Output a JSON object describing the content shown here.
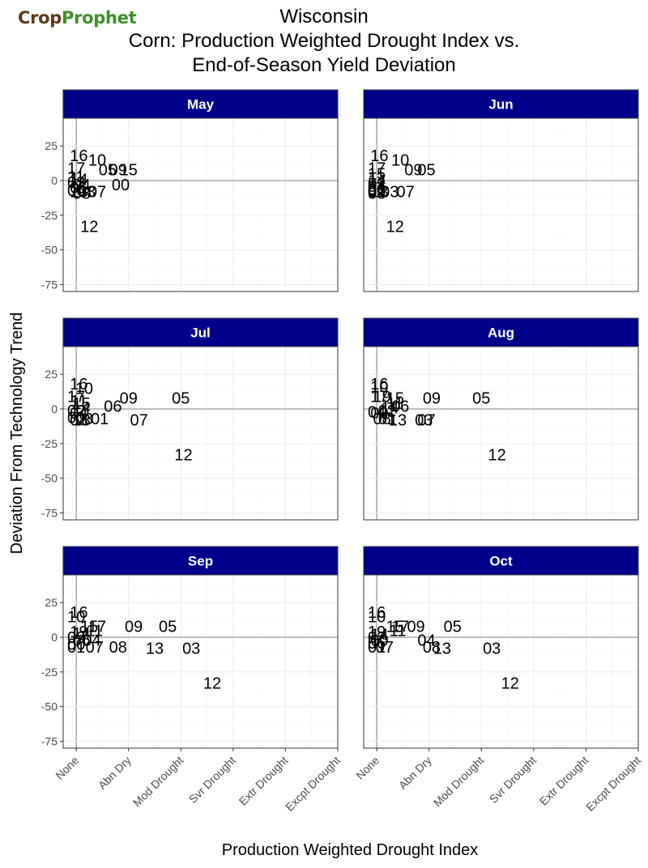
{
  "logo": {
    "part1": "Crop",
    "part2": "Prophet"
  },
  "title": {
    "line1": "Wisconsin",
    "line2": "Corn: Production Weighted Drought Index vs.",
    "line3": "End-of-Season Yield Deviation"
  },
  "colors": {
    "strip": "#00008b",
    "strip_text": "#ffffff",
    "grid": "#ebebeb",
    "zero_line": "#b0b0b0",
    "panel_border": "#333333"
  },
  "chart_data": {
    "type": "scatter",
    "xlabel": "Production Weighted Drought Index",
    "ylabel": "Deviation From Technology Trend",
    "x_ticks": [
      "None",
      "Abn Dry",
      "Mod Drought",
      "Svr Drought",
      "Extr Drought",
      "Excpt Drought"
    ],
    "x_range": [
      -0.25,
      5
    ],
    "y_ticks": [
      25,
      0,
      -25,
      -50,
      -75
    ],
    "ylim": [
      -80,
      45
    ],
    "panels": [
      {
        "name": "May",
        "points": [
          {
            "label": "16",
            "x": 0.05,
            "y": 18
          },
          {
            "label": "10",
            "x": 0.4,
            "y": 15
          },
          {
            "label": "17",
            "x": 0.0,
            "y": 9
          },
          {
            "label": "05",
            "x": 0.6,
            "y": 8
          },
          {
            "label": "09",
            "x": 0.8,
            "y": 8
          },
          {
            "label": "15",
            "x": 1.0,
            "y": 8
          },
          {
            "label": "11",
            "x": 0.0,
            "y": 3
          },
          {
            "label": "14",
            "x": 0.05,
            "y": 1
          },
          {
            "label": "02",
            "x": 0.0,
            "y": -1
          },
          {
            "label": "04",
            "x": 0.1,
            "y": -3
          },
          {
            "label": "01",
            "x": 0.05,
            "y": -5
          },
          {
            "label": "00",
            "x": 0.85,
            "y": -3
          },
          {
            "label": "06",
            "x": 0.0,
            "y": -7
          },
          {
            "label": "13",
            "x": 0.05,
            "y": -8
          },
          {
            "label": "08",
            "x": 0.1,
            "y": -9
          },
          {
            "label": "03",
            "x": 0.2,
            "y": -8
          },
          {
            "label": "07",
            "x": 0.4,
            "y": -8
          },
          {
            "label": "12",
            "x": 0.25,
            "y": -33
          }
        ]
      },
      {
        "name": "Jun",
        "points": [
          {
            "label": "16",
            "x": 0.05,
            "y": 18
          },
          {
            "label": "10",
            "x": 0.45,
            "y": 15
          },
          {
            "label": "17",
            "x": 0.0,
            "y": 9
          },
          {
            "label": "09",
            "x": 0.7,
            "y": 8
          },
          {
            "label": "05",
            "x": 0.95,
            "y": 8
          },
          {
            "label": "15",
            "x": 0.0,
            "y": 5
          },
          {
            "label": "11",
            "x": 0.0,
            "y": 2
          },
          {
            "label": "14",
            "x": 0.0,
            "y": 0
          },
          {
            "label": "02",
            "x": 0.0,
            "y": -2
          },
          {
            "label": "04",
            "x": 0.0,
            "y": -4
          },
          {
            "label": "00",
            "x": 0.0,
            "y": -6
          },
          {
            "label": "06",
            "x": 0.0,
            "y": -7
          },
          {
            "label": "01",
            "x": 0.0,
            "y": -8
          },
          {
            "label": "13",
            "x": 0.05,
            "y": -8
          },
          {
            "label": "03",
            "x": 0.25,
            "y": -8
          },
          {
            "label": "07",
            "x": 0.55,
            "y": -8
          },
          {
            "label": "08",
            "x": 0.0,
            "y": -9
          },
          {
            "label": "12",
            "x": 0.35,
            "y": -33
          }
        ]
      },
      {
        "name": "Jul",
        "points": [
          {
            "label": "16",
            "x": 0.05,
            "y": 18
          },
          {
            "label": "10",
            "x": 0.15,
            "y": 15
          },
          {
            "label": "17",
            "x": 0.0,
            "y": 9
          },
          {
            "label": "09",
            "x": 1.0,
            "y": 8
          },
          {
            "label": "05",
            "x": 2.0,
            "y": 8
          },
          {
            "label": "11",
            "x": 0.05,
            "y": 6
          },
          {
            "label": "15",
            "x": 0.1,
            "y": 4
          },
          {
            "label": "06",
            "x": 0.7,
            "y": 2
          },
          {
            "label": "14",
            "x": 0.1,
            "y": 1
          },
          {
            "label": "02",
            "x": 0.0,
            "y": -1
          },
          {
            "label": "04",
            "x": 0.05,
            "y": -3
          },
          {
            "label": "00",
            "x": 0.0,
            "y": -6
          },
          {
            "label": "03",
            "x": 0.15,
            "y": -7
          },
          {
            "label": "01",
            "x": 0.45,
            "y": -7
          },
          {
            "label": "08",
            "x": 0.05,
            "y": -8
          },
          {
            "label": "13",
            "x": 0.1,
            "y": -8
          },
          {
            "label": "07",
            "x": 1.2,
            "y": -8
          },
          {
            "label": "12",
            "x": 2.05,
            "y": -33
          }
        ]
      },
      {
        "name": "Aug",
        "points": [
          {
            "label": "16",
            "x": 0.05,
            "y": 18
          },
          {
            "label": "10",
            "x": 0.05,
            "y": 16
          },
          {
            "label": "17",
            "x": 0.05,
            "y": 9
          },
          {
            "label": "19",
            "x": 0.1,
            "y": 9
          },
          {
            "label": "15",
            "x": 0.35,
            "y": 8
          },
          {
            "label": "09",
            "x": 1.05,
            "y": 8
          },
          {
            "label": "05",
            "x": 2.0,
            "y": 8
          },
          {
            "label": "11",
            "x": 0.35,
            "y": 4
          },
          {
            "label": "06",
            "x": 0.45,
            "y": 2
          },
          {
            "label": "14",
            "x": 0.25,
            "y": 1
          },
          {
            "label": "02",
            "x": 0.2,
            "y": -1
          },
          {
            "label": "04",
            "x": 0.0,
            "y": -2
          },
          {
            "label": "00",
            "x": 0.05,
            "y": -3
          },
          {
            "label": "08",
            "x": 0.1,
            "y": -7
          },
          {
            "label": "01",
            "x": 0.2,
            "y": -7
          },
          {
            "label": "13",
            "x": 0.4,
            "y": -8
          },
          {
            "label": "03",
            "x": 0.9,
            "y": -8
          },
          {
            "label": "07",
            "x": 0.95,
            "y": -8
          },
          {
            "label": "12",
            "x": 2.3,
            "y": -33
          }
        ]
      },
      {
        "name": "Sep",
        "points": [
          {
            "label": "16",
            "x": 0.05,
            "y": 18
          },
          {
            "label": "10",
            "x": 0.0,
            "y": 15
          },
          {
            "label": "15",
            "x": 0.25,
            "y": 8
          },
          {
            "label": "17",
            "x": 0.4,
            "y": 8
          },
          {
            "label": "09",
            "x": 1.1,
            "y": 8
          },
          {
            "label": "05",
            "x": 1.75,
            "y": 8
          },
          {
            "label": "11",
            "x": 0.35,
            "y": 5
          },
          {
            "label": "19",
            "x": 0.05,
            "y": 4
          },
          {
            "label": "14",
            "x": 0.1,
            "y": 3
          },
          {
            "label": "02",
            "x": 0.0,
            "y": 0
          },
          {
            "label": "06",
            "x": 0.1,
            "y": -2
          },
          {
            "label": "04",
            "x": 0.3,
            "y": -2
          },
          {
            "label": "00",
            "x": 0.0,
            "y": -5
          },
          {
            "label": "01",
            "x": 0.0,
            "y": -7
          },
          {
            "label": "07",
            "x": 0.35,
            "y": -7
          },
          {
            "label": "08",
            "x": 0.8,
            "y": -7
          },
          {
            "label": "13",
            "x": 1.5,
            "y": -8
          },
          {
            "label": "03",
            "x": 2.2,
            "y": -8
          },
          {
            "label": "12",
            "x": 2.6,
            "y": -33
          }
        ]
      },
      {
        "name": "Oct",
        "points": [
          {
            "label": "16",
            "x": 0.0,
            "y": 18
          },
          {
            "label": "10",
            "x": 0.0,
            "y": 15
          },
          {
            "label": "15",
            "x": 0.35,
            "y": 8
          },
          {
            "label": "17",
            "x": 0.45,
            "y": 8
          },
          {
            "label": "09",
            "x": 0.75,
            "y": 8
          },
          {
            "label": "05",
            "x": 1.45,
            "y": 8
          },
          {
            "label": "11",
            "x": 0.4,
            "y": 5
          },
          {
            "label": "19",
            "x": 0.0,
            "y": 4
          },
          {
            "label": "14",
            "x": 0.05,
            "y": 2
          },
          {
            "label": "02",
            "x": 0.0,
            "y": 0
          },
          {
            "label": "00",
            "x": 0.05,
            "y": -2
          },
          {
            "label": "06",
            "x": 0.0,
            "y": -4
          },
          {
            "label": "04",
            "x": 0.95,
            "y": -2
          },
          {
            "label": "01",
            "x": 0.0,
            "y": -7
          },
          {
            "label": "07",
            "x": 0.15,
            "y": -7
          },
          {
            "label": "08",
            "x": 1.05,
            "y": -7
          },
          {
            "label": "13",
            "x": 1.25,
            "y": -8
          },
          {
            "label": "03",
            "x": 2.2,
            "y": -8
          },
          {
            "label": "12",
            "x": 2.55,
            "y": -33
          }
        ]
      }
    ]
  }
}
